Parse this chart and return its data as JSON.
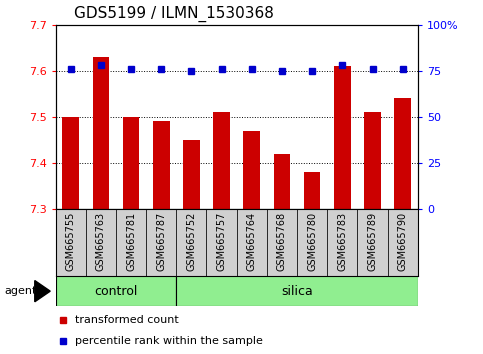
{
  "title": "GDS5199 / ILMN_1530368",
  "samples": [
    "GSM665755",
    "GSM665763",
    "GSM665781",
    "GSM665787",
    "GSM665752",
    "GSM665757",
    "GSM665764",
    "GSM665768",
    "GSM665780",
    "GSM665783",
    "GSM665789",
    "GSM665790"
  ],
  "n_control": 4,
  "n_silica": 8,
  "transformed_counts": [
    7.5,
    7.63,
    7.5,
    7.49,
    7.45,
    7.51,
    7.47,
    7.42,
    7.38,
    7.61,
    7.51,
    7.54
  ],
  "percentile_ranks": [
    76,
    78,
    76,
    76,
    75,
    76,
    76,
    75,
    75,
    78,
    76,
    76
  ],
  "ylim_left": [
    7.3,
    7.7
  ],
  "ylim_right": [
    0,
    100
  ],
  "yticks_left": [
    7.3,
    7.4,
    7.5,
    7.6,
    7.7
  ],
  "yticks_right": [
    0,
    25,
    50,
    75,
    100
  ],
  "bar_color": "#cc0000",
  "dot_color": "#0000cc",
  "grid_color": "#000000",
  "label_box_color": "#d0d0d0",
  "control_color": "#90ee90",
  "silica_color": "#90ee90",
  "agent_label": "agent",
  "legend_bar_label": "transformed count",
  "legend_dot_label": "percentile rank within the sample",
  "title_fontsize": 11,
  "tick_fontsize": 8,
  "sample_fontsize": 7,
  "group_fontsize": 9,
  "legend_fontsize": 8
}
